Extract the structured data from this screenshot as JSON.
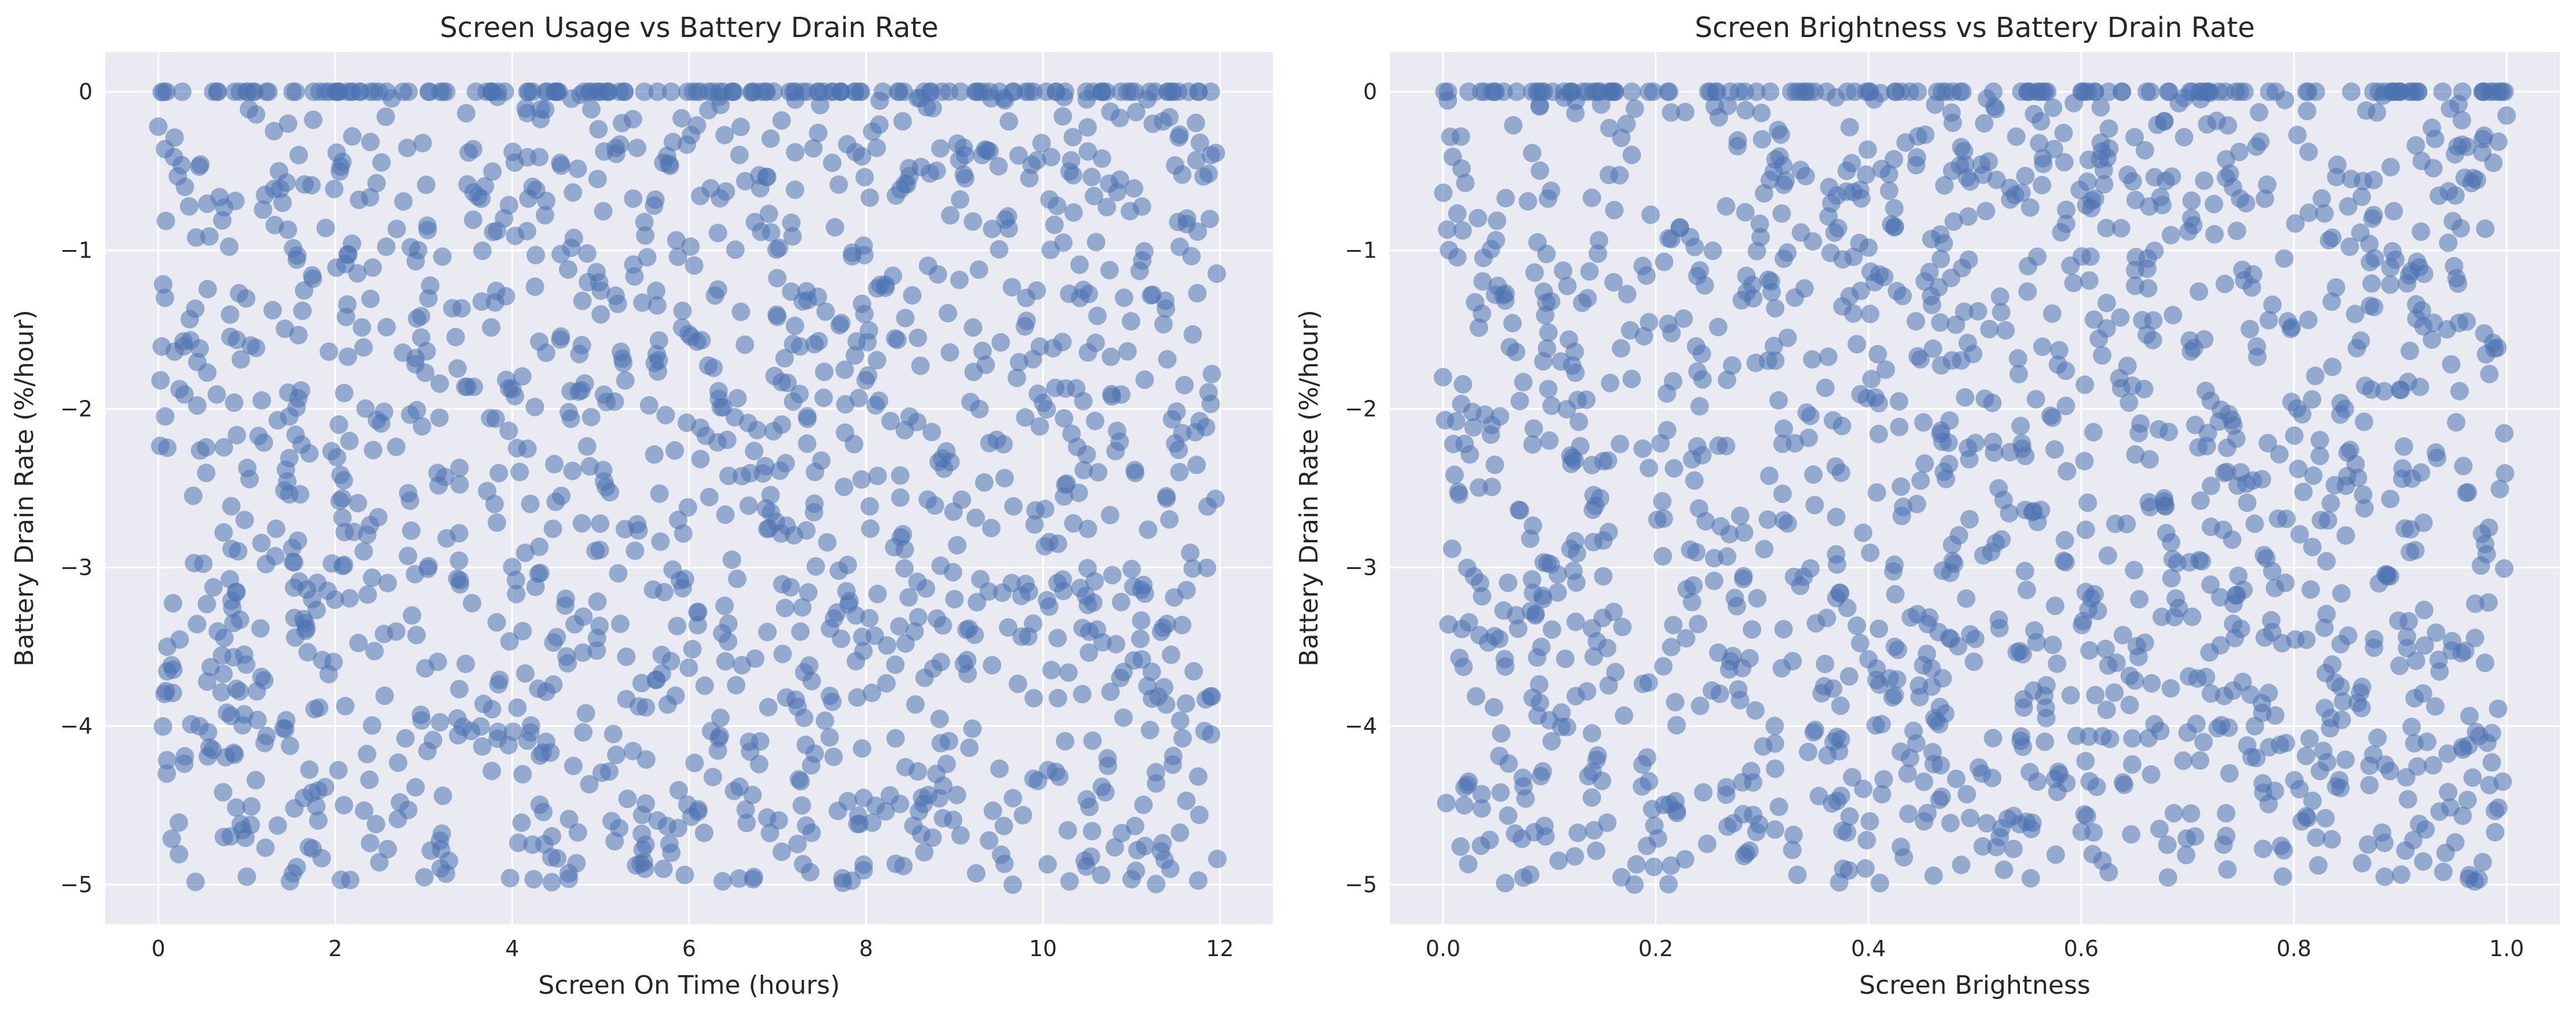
{
  "chart_data": [
    {
      "type": "scatter",
      "title": "Screen Usage vs Battery Drain Rate",
      "xlabel": "Screen On Time (hours)",
      "ylabel": "Battery Drain Rate (%/hour)",
      "xlim": [
        -0.6,
        12.6
      ],
      "ylim": [
        -5.25,
        0.25
      ],
      "xticks": [
        0,
        2,
        4,
        6,
        8,
        10,
        12
      ],
      "yticks": [
        0,
        -1,
        -2,
        -3,
        -4,
        -5
      ],
      "grid": true,
      "marker_color": "#4c72b0",
      "background_color": "#eaeaf2",
      "sample_points": [
        {
          "x": 0.0,
          "y": -0.22
        },
        {
          "x": 0.1,
          "y": -3.5
        },
        {
          "x": 0.3,
          "y": -0.6
        },
        {
          "x": 1.0,
          "y": -4.95
        },
        {
          "x": 2.1,
          "y": -1.9
        },
        {
          "x": 3.8,
          "y": -2.6
        },
        {
          "x": 5.5,
          "y": -4.9
        },
        {
          "x": 7.2,
          "y": -0.05
        },
        {
          "x": 9.0,
          "y": -3.2
        },
        {
          "x": 10.3,
          "y": -4.98
        },
        {
          "x": 11.6,
          "y": -1.85
        },
        {
          "x": 11.9,
          "y": -0.4
        }
      ]
    },
    {
      "type": "scatter",
      "title": "Screen Brightness vs Battery Drain Rate",
      "xlabel": "Screen Brightness",
      "ylabel": "Battery Drain Rate (%/hour)",
      "xlim": [
        -0.05,
        1.05
      ],
      "ylim": [
        -5.25,
        0.25
      ],
      "xticks": [
        0.0,
        0.2,
        0.4,
        0.6,
        0.8,
        1.0
      ],
      "yticks": [
        0,
        -1,
        -2,
        -3,
        -4,
        -5
      ],
      "grid": true,
      "marker_color": "#4c72b0",
      "background_color": "#eaeaf2",
      "sample_points": [
        {
          "x": 0.0,
          "y": -1.8
        },
        {
          "x": 0.02,
          "y": -4.5
        },
        {
          "x": 0.1,
          "y": -2.2
        },
        {
          "x": 0.18,
          "y": -5.0
        },
        {
          "x": 0.3,
          "y": -0.3
        },
        {
          "x": 0.42,
          "y": -3.7
        },
        {
          "x": 0.55,
          "y": -1.1
        },
        {
          "x": 0.62,
          "y": -4.85
        },
        {
          "x": 0.75,
          "y": -2.4
        },
        {
          "x": 0.88,
          "y": -3.1
        },
        {
          "x": 0.97,
          "y": -4.98
        },
        {
          "x": 1.0,
          "y": -0.15
        }
      ]
    }
  ]
}
